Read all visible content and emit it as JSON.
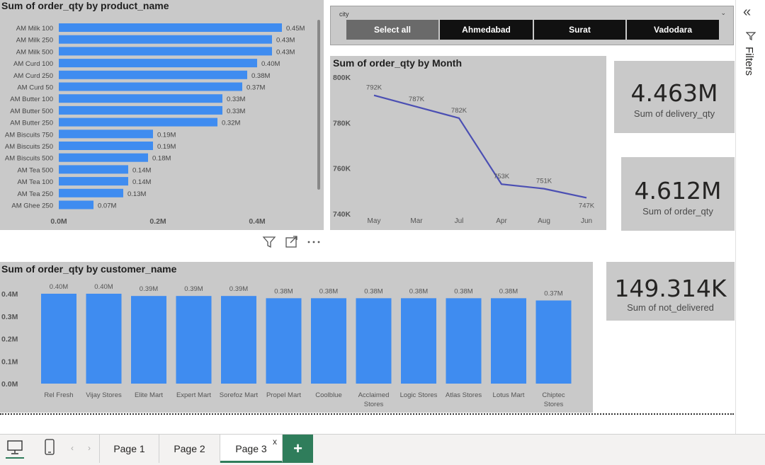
{
  "product_chart": {
    "title": "Sum of order_qty by product_name",
    "chart_data": {
      "type": "bar",
      "orientation": "horizontal",
      "categories": [
        "AM Milk 100",
        "AM Milk 250",
        "AM Milk 500",
        "AM Curd 100",
        "AM Curd 250",
        "AM Curd 50",
        "AM Butter 100",
        "AM Butter 500",
        "AM Butter 250",
        "AM Biscuits 750",
        "AM Biscuits 250",
        "AM Biscuits 500",
        "AM Tea 500",
        "AM Tea 100",
        "AM Tea 250",
        "AM Ghee 250"
      ],
      "values": [
        0.45,
        0.43,
        0.43,
        0.4,
        0.38,
        0.37,
        0.33,
        0.33,
        0.32,
        0.19,
        0.19,
        0.18,
        0.14,
        0.14,
        0.13,
        0.07
      ],
      "labels": [
        "0.45M",
        "0.43M",
        "0.43M",
        "0.40M",
        "0.38M",
        "0.37M",
        "0.33M",
        "0.33M",
        "0.32M",
        "0.19M",
        "0.19M",
        "0.18M",
        "0.14M",
        "0.14M",
        "0.13M",
        "0.07M"
      ],
      "xticks": [
        "0.0M",
        "0.2M",
        "0.4M"
      ],
      "xlim": [
        0,
        0.5
      ],
      "color": "#3f8cf0"
    }
  },
  "slicer": {
    "label": "city",
    "options": [
      {
        "label": "Select all",
        "selected": true
      },
      {
        "label": "Ahmedabad",
        "selected": false
      },
      {
        "label": "Surat",
        "selected": false
      },
      {
        "label": "Vadodara",
        "selected": false
      }
    ]
  },
  "month_chart": {
    "title": "Sum of order_qty by Month",
    "chart_data": {
      "type": "line",
      "categories": [
        "May",
        "Mar",
        "Jul",
        "Apr",
        "Aug",
        "Jun"
      ],
      "values": [
        792,
        787,
        782,
        753,
        751,
        747
      ],
      "labels": [
        "792K",
        "787K",
        "782K",
        "753K",
        "751K",
        "747K"
      ],
      "yticks": [
        "800K",
        "780K",
        "760K",
        "740K"
      ],
      "ylim": [
        740,
        800
      ],
      "unit": "K",
      "color": "#4b4fb3"
    }
  },
  "cards": [
    {
      "value": "4.463M",
      "label": "Sum of delivery_qty"
    },
    {
      "value": "4.612M",
      "label": "Sum of order_qty"
    },
    {
      "value": "149.314K",
      "label": "Sum of not_delivered"
    }
  ],
  "customer_chart": {
    "title": "Sum of order_qty by customer_name",
    "chart_data": {
      "type": "bar",
      "orientation": "vertical",
      "categories": [
        "Rel Fresh",
        "Vijay Stores",
        "Elite Mart",
        "Expert Mart",
        "Sorefoz Mart",
        "Propel Mart",
        "Coolblue",
        "Acclaimed Stores",
        "Logic Stores",
        "Atlas Stores",
        "Lotus Mart",
        "Chiptec Stores"
      ],
      "values": [
        0.4,
        0.4,
        0.39,
        0.39,
        0.39,
        0.38,
        0.38,
        0.38,
        0.38,
        0.38,
        0.38,
        0.37
      ],
      "labels": [
        "0.40M",
        "0.40M",
        "0.39M",
        "0.39M",
        "0.39M",
        "0.38M",
        "0.38M",
        "0.38M",
        "0.38M",
        "0.38M",
        "0.38M",
        "0.37M"
      ],
      "yticks": [
        "0.4M",
        "0.3M",
        "0.2M",
        "0.1M",
        "0.0M"
      ],
      "ylim": [
        0,
        0.4
      ],
      "color": "#3f8cf0"
    }
  },
  "filters_pane": {
    "label": "Filters"
  },
  "tabs": [
    {
      "label": "Page 1",
      "active": false
    },
    {
      "label": "Page 2",
      "active": false
    },
    {
      "label": "Page 3",
      "active": true
    }
  ],
  "add_tab_label": "+",
  "close_tab_label": "x",
  "colors": {
    "accent": "#3f8cf0",
    "line": "#4b4fb3",
    "panel": "#c9c9c9",
    "add_tab": "#2f7d5b"
  }
}
